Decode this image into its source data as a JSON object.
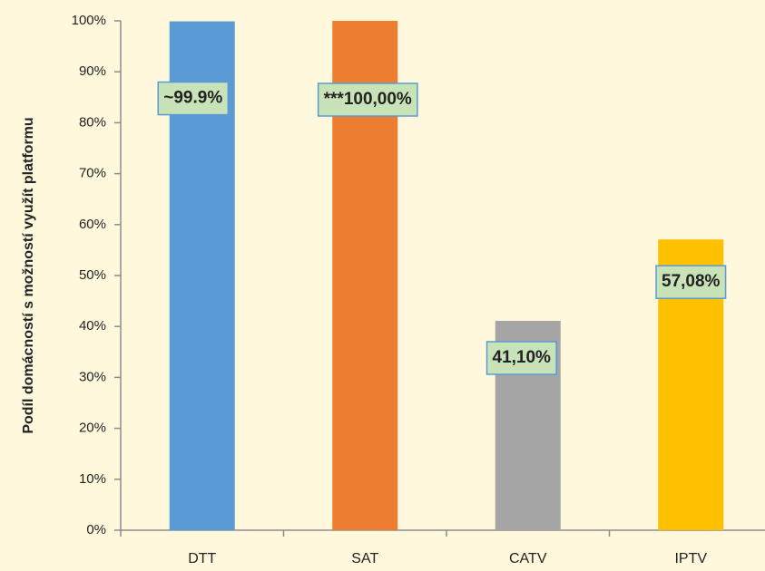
{
  "chart_data": {
    "type": "bar",
    "y_label": "Podíl domácností s možností využít platformu",
    "categories": [
      "DTT",
      "SAT",
      "CATV",
      "IPTV"
    ],
    "values": [
      99.9,
      100,
      41.1,
      57.08
    ],
    "value_labels": [
      "~99.9%",
      "***100,00%",
      "41,10%",
      "57,08%"
    ],
    "colors": [
      "#5b9bd5",
      "#ed7d31",
      "#a5a5a5",
      "#ffc000"
    ],
    "ylim": [
      0,
      100
    ],
    "yticks": [
      {
        "value": 0,
        "label": "0%"
      },
      {
        "value": 10,
        "label": "10%"
      },
      {
        "value": 20,
        "label": "20%"
      },
      {
        "value": 30,
        "label": "30%"
      },
      {
        "value": 40,
        "label": "40%"
      },
      {
        "value": 50,
        "label": "50%"
      },
      {
        "value": 60,
        "label": "60%"
      },
      {
        "value": 70,
        "label": "70%"
      },
      {
        "value": 80,
        "label": "80%"
      },
      {
        "value": 90,
        "label": "90%"
      },
      {
        "value": 100,
        "label": "100%"
      }
    ],
    "grid": false
  }
}
